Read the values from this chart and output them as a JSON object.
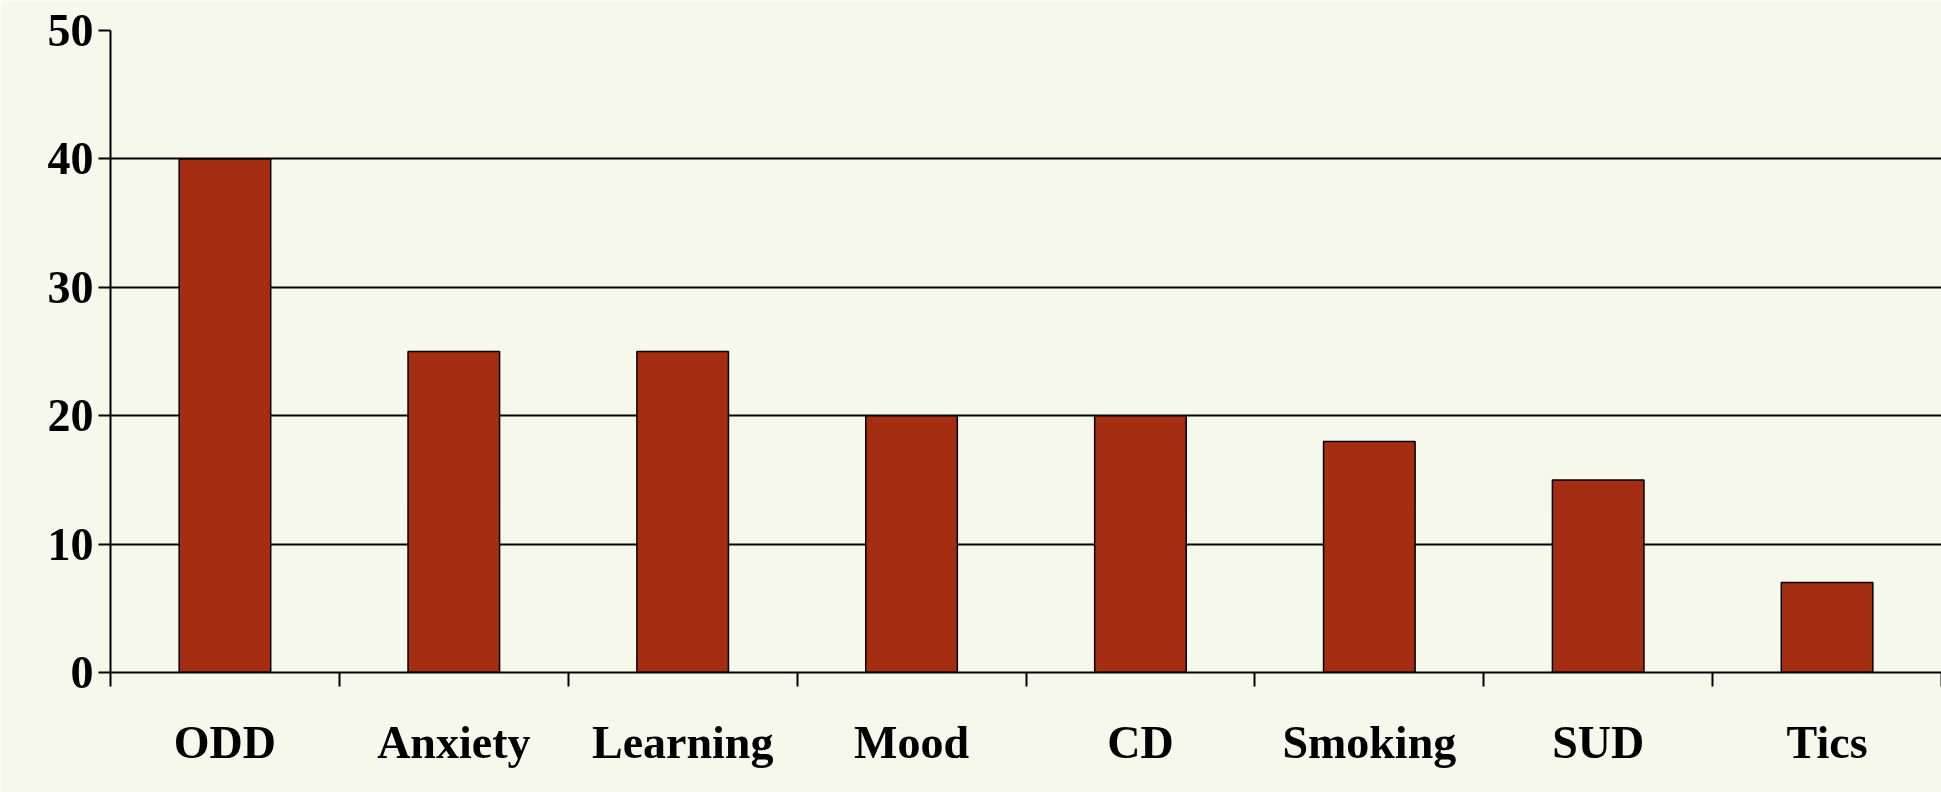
{
  "chart_data": {
    "type": "bar",
    "categories": [
      "ODD",
      "Anxiety",
      "Learning",
      "Mood",
      "CD",
      "Smoking",
      "SUD",
      "Tics"
    ],
    "values": [
      40,
      25,
      25,
      20,
      20,
      18,
      15,
      7
    ],
    "color": "#a52d11",
    "ylim": [
      0,
      50
    ],
    "yticks": [
      0,
      10,
      20,
      30,
      40,
      50
    ],
    "grid": "y"
  }
}
